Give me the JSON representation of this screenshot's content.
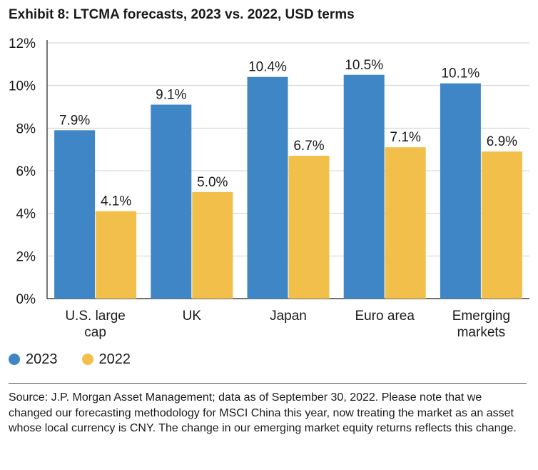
{
  "title": "Exhibit 8: LTCMA forecasts, 2023 vs. 2022, USD terms",
  "colors": {
    "series_2023": "#3f86c6",
    "series_2022": "#f2bf4b",
    "grid": "#d0d0d0",
    "axis": "#1a1a1a"
  },
  "legend": [
    {
      "label": "2023",
      "color": "#3f86c6"
    },
    {
      "label": "2022",
      "color": "#f2bf4b"
    }
  ],
  "source": "Source: J.P. Morgan Asset Management; data as of September 30, 2022. Please note that we changed our forecasting methodology for MSCI China this year, now treating the market as an asset whose local currency is CNY. The change in our emerging market equity returns reflects this change.",
  "chart_data": {
    "type": "bar",
    "title": "Exhibit 8: LTCMA forecasts, 2023 vs. 2022, USD terms",
    "categories": [
      [
        "U.S. large",
        "cap"
      ],
      [
        "UK"
      ],
      [
        "Japan"
      ],
      [
        "Euro area"
      ],
      [
        "Emerging",
        "markets"
      ]
    ],
    "series": [
      {
        "name": "2023",
        "values": [
          7.9,
          9.1,
          10.4,
          10.5,
          10.1
        ],
        "labels": [
          "7.9%",
          "9.1%",
          "10.4%",
          "10.5%",
          "10.1%"
        ]
      },
      {
        "name": "2022",
        "values": [
          4.1,
          5.0,
          6.7,
          7.1,
          6.9
        ],
        "labels": [
          "4.1%",
          "5.0%",
          "6.7%",
          "7.1%",
          "6.9%"
        ]
      }
    ],
    "yticks": [
      0,
      2,
      4,
      6,
      8,
      10,
      12
    ],
    "ytick_labels": [
      "0%",
      "2%",
      "4%",
      "6%",
      "8%",
      "10%",
      "12%"
    ],
    "ylim": [
      0,
      12
    ],
    "grid": true,
    "legend_position": "bottom-left",
    "xlabel": "",
    "ylabel": ""
  }
}
